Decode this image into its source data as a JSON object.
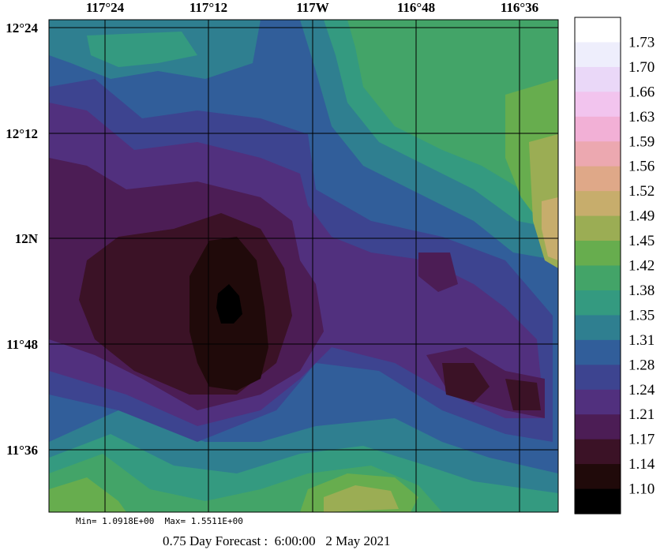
{
  "map": {
    "lon_ticks": [
      "117°24",
      "117°12",
      "117W",
      "116°48",
      "116°36"
    ],
    "lat_ticks": [
      "12°24",
      "12°12",
      "12N",
      "11°48",
      "11°36"
    ]
  },
  "colorbar": {
    "levels": [
      "1.73",
      "1.70",
      "1.66",
      "1.63",
      "1.59",
      "1.56",
      "1.52",
      "1.49",
      "1.45",
      "1.42",
      "1.38",
      "1.35",
      "1.31",
      "1.28",
      "1.24",
      "1.21",
      "1.17",
      "1.14",
      "1.10"
    ],
    "colors": [
      "#ffffff",
      "#eeeefc",
      "#ead8f8",
      "#f2c4ee",
      "#f2b0d6",
      "#eca8b0",
      "#dfa888",
      "#c7ad6c",
      "#9bad54",
      "#67ad4e",
      "#43a468",
      "#349a80",
      "#2f7f90",
      "#315e9a",
      "#3d4490",
      "#51307e",
      "#4c1d55",
      "#3b1226",
      "#200a0a",
      "#000000"
    ]
  },
  "field_colors": {
    "c1": "#000000",
    "c2": "#200a0a",
    "c3": "#3b1226",
    "c4": "#4c1d55",
    "c5": "#51307e",
    "c6": "#3d4490",
    "c7": "#315e9a",
    "c8": "#2f7f90",
    "c9": "#349a80",
    "c10": "#43a468",
    "c11": "#67ad4e",
    "c12": "#9bad54",
    "c13": "#c7ad6c"
  },
  "footer": {
    "minmax": "Min= 1.0918E+00  Max= 1.5511E+00",
    "forecast": "0.75 Day Forecast :  6:00:00   2 May 2021"
  }
}
